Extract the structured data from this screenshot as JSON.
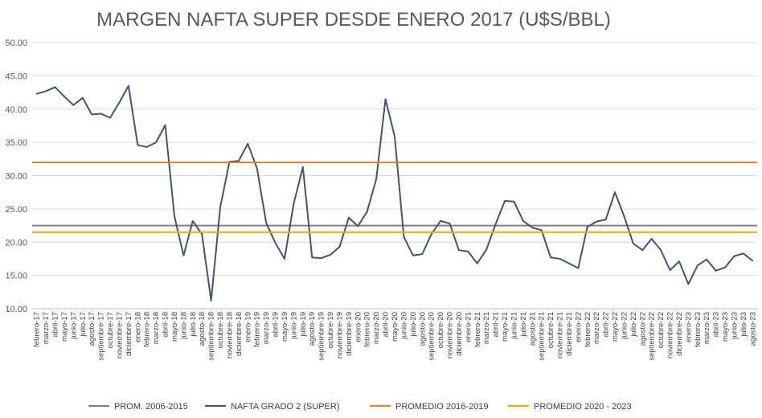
{
  "chart_data": {
    "type": "line",
    "title": "MARGEN NAFTA SUPER DESDE ENERO 2017 (U$S/BBL)",
    "ylim": [
      10,
      50
    ],
    "yticks": [
      "10.00",
      "15.00",
      "20.00",
      "25.00",
      "30.00",
      "35.00",
      "40.00",
      "45.00",
      "50.00"
    ],
    "grid": true,
    "legend_position": "bottom",
    "categories": [
      "febrero-17",
      "marzo-17",
      "abril-17",
      "mayo-17",
      "junio-17",
      "julio-17",
      "agosto-17",
      "septiembre-17",
      "octubre-17",
      "noviembre-17",
      "diciembre-17",
      "enero-18",
      "febrero-18",
      "marzo-18",
      "abril-18",
      "mayo-18",
      "junio-18",
      "julio-18",
      "agosto-18",
      "septiembre-18",
      "octubre-18",
      "noviembre-18",
      "diciembre-18",
      "enero-19",
      "febrero-19",
      "marzo-19",
      "abril-19",
      "mayo-19",
      "junio-19",
      "julio-19",
      "agosto-19",
      "septiembre-19",
      "octubre-19",
      "noviembre-19",
      "diciembre-19",
      "enero-20",
      "febrero-20",
      "marzo-20",
      "abril-20",
      "mayo-20",
      "junio-20",
      "julio-20",
      "agosto-20",
      "septiembre-20",
      "octubre-20",
      "noviembre-20",
      "diciembre-20",
      "enero-21",
      "febrero-21",
      "marzo-21",
      "abril-21",
      "mayo-21",
      "junio-21",
      "julio-21",
      "agosto-21",
      "septiembre-21",
      "octubre-21",
      "noviembre-21",
      "diciembre-21",
      "enero-22",
      "febrero-22",
      "marzo-22",
      "abril-22",
      "mayo-22",
      "junio-22",
      "julio-22",
      "agosto-22",
      "septiembre-22",
      "octubre-22",
      "noviembre-22",
      "diciembre-22",
      "enero-23",
      "febrero-23",
      "marzo-23",
      "abril-23",
      "mayo-23",
      "junio-23",
      "julio-23",
      "agosto-23"
    ],
    "series": [
      {
        "name": "PROM. 2006-2015",
        "color": "#7f7f7f",
        "constant": 22.5
      },
      {
        "name": "NAFTA GRADO 2 (SUPER)",
        "color": "#44546a",
        "values": [
          42.3,
          42.7,
          43.3,
          41.9,
          40.6,
          41.7,
          39.2,
          39.3,
          38.7,
          41.0,
          43.5,
          34.6,
          34.3,
          35.0,
          37.6,
          23.9,
          18.0,
          23.2,
          21.2,
          11.2,
          25.3,
          32.1,
          32.2,
          34.8,
          31.1,
          22.9,
          19.9,
          17.5,
          25.8,
          31.3,
          17.7,
          17.6,
          18.1,
          19.3,
          23.7,
          22.4,
          24.6,
          29.5,
          41.5,
          35.9,
          20.8,
          18.0,
          18.2,
          21.2,
          23.2,
          22.8,
          18.8,
          18.6,
          16.8,
          18.9,
          22.7,
          26.2,
          26.1,
          23.2,
          22.2,
          21.8,
          17.7,
          17.5,
          16.8,
          16.1,
          22.3,
          23.1,
          23.4,
          27.5,
          23.9,
          19.8,
          18.8,
          20.5,
          18.8,
          15.8,
          17.1,
          13.7,
          16.5,
          17.4,
          15.7,
          16.2,
          17.9,
          18.3,
          17.2
        ]
      },
      {
        "name": "PROMEDIO 2016-2019",
        "color": "#ed7d31",
        "constant": 32.0
      },
      {
        "name": "PROMEDIO 2020 - 2023",
        "color": "#ffa500",
        "constant": 21.5
      }
    ]
  }
}
